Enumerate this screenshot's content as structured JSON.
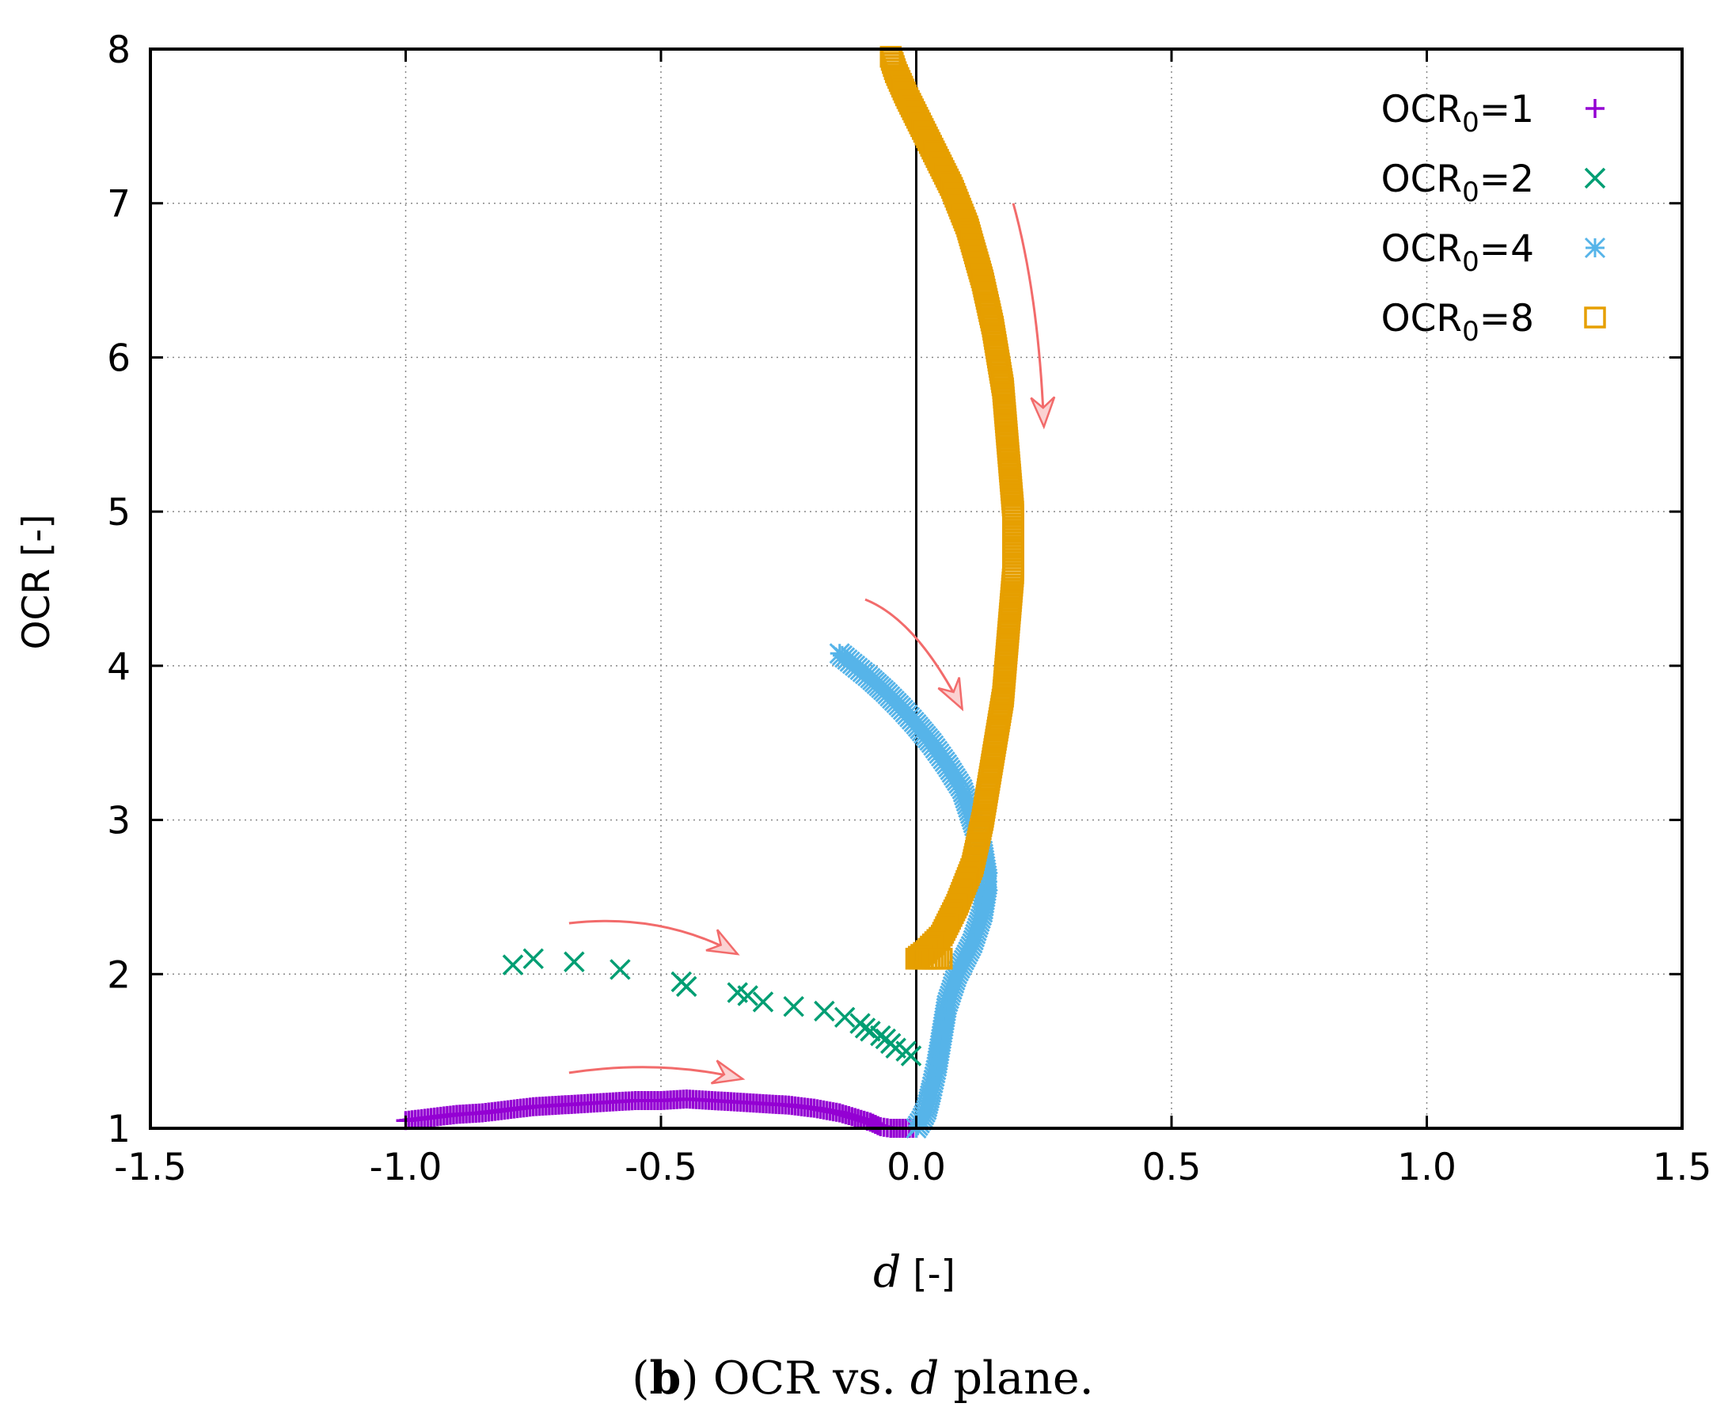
{
  "chart_data": {
    "type": "scatter",
    "xlabel_var": "d",
    "xlabel_unit": " [-]",
    "ylabel": "OCR [-]",
    "xlim": [
      -1.5,
      1.5
    ],
    "ylim": [
      1,
      8
    ],
    "xticks": [
      "-1.5",
      "-1.0",
      "-0.5",
      "0.0",
      "0.5",
      "1.0",
      "1.5"
    ],
    "yticks": [
      "1",
      "2",
      "3",
      "4",
      "5",
      "6",
      "7",
      "8"
    ],
    "grid": true,
    "legend_position": "top-right",
    "caption": {
      "label": "b",
      "text_before": ") OCR vs. ",
      "var": "d",
      "text_after": " plane."
    },
    "series": [
      {
        "name_main": "OCR",
        "name_sub": "0",
        "name_tail": "=1",
        "marker": "plus",
        "color": "#9400D3",
        "points": [
          [
            -1.0,
            1.05
          ],
          [
            -0.95,
            1.07
          ],
          [
            -0.9,
            1.09
          ],
          [
            -0.85,
            1.1
          ],
          [
            -0.8,
            1.12
          ],
          [
            -0.75,
            1.14
          ],
          [
            -0.7,
            1.15
          ],
          [
            -0.65,
            1.16
          ],
          [
            -0.6,
            1.17
          ],
          [
            -0.55,
            1.18
          ],
          [
            -0.5,
            1.18
          ],
          [
            -0.45,
            1.19
          ],
          [
            -0.4,
            1.18
          ],
          [
            -0.35,
            1.17
          ],
          [
            -0.3,
            1.16
          ],
          [
            -0.25,
            1.15
          ],
          [
            -0.2,
            1.13
          ],
          [
            -0.15,
            1.1
          ],
          [
            -0.12,
            1.07
          ],
          [
            -0.09,
            1.04
          ],
          [
            -0.07,
            1.01
          ],
          [
            -0.05,
            1.0
          ],
          [
            -0.02,
            1.0
          ],
          [
            0.0,
            1.0
          ]
        ]
      },
      {
        "name_main": "OCR",
        "name_sub": "0",
        "name_tail": "=2",
        "marker": "cross",
        "color": "#009E73",
        "points": [
          [
            -0.79,
            2.06
          ],
          [
            -0.75,
            2.1
          ],
          [
            -0.67,
            2.08
          ],
          [
            -0.58,
            2.03
          ],
          [
            -0.46,
            1.95
          ],
          [
            -0.45,
            1.92
          ],
          [
            -0.35,
            1.88
          ],
          [
            -0.33,
            1.86
          ],
          [
            -0.3,
            1.82
          ],
          [
            -0.24,
            1.79
          ],
          [
            -0.18,
            1.76
          ],
          [
            -0.14,
            1.72
          ],
          [
            -0.11,
            1.68
          ],
          [
            -0.1,
            1.65
          ],
          [
            -0.09,
            1.63
          ],
          [
            -0.07,
            1.6
          ],
          [
            -0.06,
            1.58
          ],
          [
            -0.05,
            1.55
          ],
          [
            -0.04,
            1.52
          ],
          [
            -0.02,
            1.5
          ],
          [
            -0.01,
            1.47
          ]
        ]
      },
      {
        "name_main": "OCR",
        "name_sub": "0",
        "name_tail": "=4",
        "marker": "star",
        "color": "#56B4E9",
        "points": [
          [
            -0.15,
            4.08
          ],
          [
            -0.12,
            4.0
          ],
          [
            -0.09,
            3.92
          ],
          [
            -0.06,
            3.83
          ],
          [
            -0.03,
            3.73
          ],
          [
            0.0,
            3.62
          ],
          [
            0.03,
            3.5
          ],
          [
            0.06,
            3.36
          ],
          [
            0.09,
            3.2
          ],
          [
            0.11,
            3.0
          ],
          [
            0.13,
            2.8
          ],
          [
            0.14,
            2.6
          ],
          [
            0.13,
            2.4
          ],
          [
            0.11,
            2.2
          ],
          [
            0.08,
            2.0
          ],
          [
            0.06,
            1.8
          ],
          [
            0.05,
            1.6
          ],
          [
            0.04,
            1.4
          ],
          [
            0.03,
            1.25
          ],
          [
            0.02,
            1.12
          ],
          [
            0.01,
            1.05
          ],
          [
            0.0,
            1.0
          ]
        ]
      },
      {
        "name_main": "OCR",
        "name_sub": "0",
        "name_tail": "=8",
        "marker": "square",
        "color": "#E69F00",
        "points": [
          [
            -0.05,
            7.95
          ],
          [
            -0.04,
            7.85
          ],
          [
            -0.02,
            7.7
          ],
          [
            0.01,
            7.5
          ],
          [
            0.04,
            7.3
          ],
          [
            0.07,
            7.1
          ],
          [
            0.1,
            6.85
          ],
          [
            0.13,
            6.5
          ],
          [
            0.15,
            6.2
          ],
          [
            0.17,
            5.8
          ],
          [
            0.18,
            5.4
          ],
          [
            0.19,
            5.0
          ],
          [
            0.19,
            4.6
          ],
          [
            0.18,
            4.2
          ],
          [
            0.17,
            3.8
          ],
          [
            0.15,
            3.4
          ],
          [
            0.13,
            3.0
          ],
          [
            0.11,
            2.7
          ],
          [
            0.08,
            2.45
          ],
          [
            0.05,
            2.25
          ],
          [
            0.02,
            2.15
          ],
          [
            0.0,
            2.1
          ],
          [
            0.02,
            2.1
          ],
          [
            0.05,
            2.1
          ]
        ]
      }
    ],
    "arrows": [
      {
        "from": [
          0.19,
          7.0
        ],
        "ctrl": [
          0.24,
          6.4
        ],
        "to": [
          0.25,
          5.55
        ]
      },
      {
        "from": [
          -0.1,
          4.43
        ],
        "ctrl": [
          0.0,
          4.3
        ],
        "to": [
          0.09,
          3.72
        ]
      },
      {
        "from": [
          -0.68,
          2.33
        ],
        "ctrl": [
          -0.5,
          2.4
        ],
        "to": [
          -0.35,
          2.13
        ]
      },
      {
        "from": [
          -0.68,
          1.36
        ],
        "ctrl": [
          -0.5,
          1.45
        ],
        "to": [
          -0.34,
          1.32
        ]
      }
    ]
  }
}
